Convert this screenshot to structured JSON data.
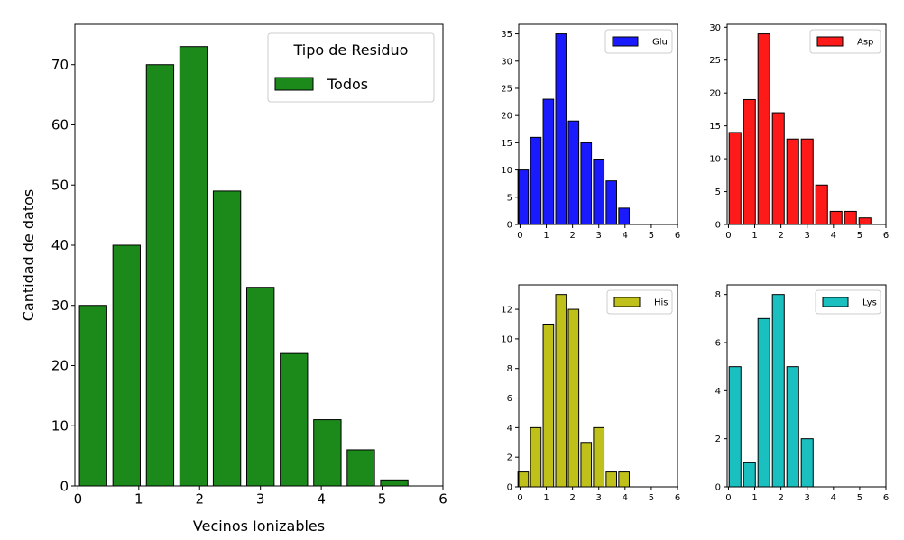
{
  "chart_data": [
    {
      "id": "main",
      "type": "bar",
      "x": [
        0.25,
        0.8,
        1.35,
        1.9,
        2.45,
        3.0,
        3.55,
        4.1,
        4.65,
        5.2
      ],
      "values": [
        30,
        40,
        70,
        73,
        49,
        33,
        22,
        11,
        6,
        1
      ],
      "xlim": [
        -0.05,
        6
      ],
      "ylim": [
        0,
        76.7
      ],
      "xticks": [
        0,
        1,
        2,
        3,
        4,
        5,
        6
      ],
      "yticks": [
        0,
        10,
        20,
        30,
        40,
        50,
        60,
        70
      ],
      "xlabel": "Vecinos Ionizables",
      "ylabel": "Cantidad de datos",
      "color": "#1b8a1b",
      "legend": {
        "title": "Tipo de Residuo",
        "label": "Todos",
        "placement": "top-right"
      },
      "grid": false
    },
    {
      "id": "glu",
      "type": "bar",
      "x": [
        0.12,
        0.6,
        1.08,
        1.56,
        2.04,
        2.52,
        3.0,
        3.48,
        3.96,
        4.44
      ],
      "values": [
        10,
        16,
        23,
        35,
        19,
        15,
        12,
        8,
        3,
        0
      ],
      "xlim": [
        -0.05,
        6
      ],
      "ylim": [
        0,
        36.75
      ],
      "xticks": [
        0,
        1,
        2,
        3,
        4,
        5,
        6
      ],
      "yticks": [
        0,
        5,
        10,
        15,
        20,
        25,
        30,
        35
      ],
      "color": "#1a1aff",
      "legend": {
        "label": "Glu",
        "placement": "top-right"
      },
      "grid": false
    },
    {
      "id": "asp",
      "type": "bar",
      "x": [
        0.25,
        0.8,
        1.35,
        1.9,
        2.45,
        3.0,
        3.55,
        4.1,
        4.65,
        5.2
      ],
      "values": [
        14,
        19,
        29,
        17,
        13,
        13,
        6,
        2,
        2,
        1
      ],
      "xlim": [
        -0.05,
        6
      ],
      "ylim": [
        0,
        30.45
      ],
      "xticks": [
        0,
        1,
        2,
        3,
        4,
        5,
        6
      ],
      "yticks": [
        0,
        5,
        10,
        15,
        20,
        25,
        30
      ],
      "color": "#ff1a1a",
      "legend": {
        "label": "Asp",
        "placement": "top-right"
      },
      "grid": false
    },
    {
      "id": "his",
      "type": "bar",
      "x": [
        0.12,
        0.6,
        1.08,
        1.56,
        2.04,
        2.52,
        3.0,
        3.48,
        3.96,
        4.44
      ],
      "values": [
        1,
        4,
        11,
        13,
        12,
        3,
        4,
        1,
        1,
        0
      ],
      "xlim": [
        -0.05,
        6
      ],
      "ylim": [
        0,
        13.65
      ],
      "xticks": [
        0,
        1,
        2,
        3,
        4,
        5,
        6
      ],
      "yticks": [
        0,
        2,
        4,
        6,
        8,
        10,
        12
      ],
      "color": "#c0c01a",
      "legend": {
        "label": "His",
        "placement": "top-right"
      },
      "grid": false
    },
    {
      "id": "lys",
      "type": "bar",
      "x": [
        0.25,
        0.8,
        1.35,
        1.9,
        2.45,
        3.0,
        3.55,
        4.1,
        4.65,
        5.2
      ],
      "values": [
        5,
        1,
        7,
        8,
        5,
        2,
        0,
        0,
        0,
        0
      ],
      "xlim": [
        -0.05,
        6
      ],
      "ylim": [
        0,
        8.4
      ],
      "xticks": [
        0,
        1,
        2,
        3,
        4,
        5,
        6
      ],
      "yticks": [
        0,
        2,
        4,
        6,
        8
      ],
      "color": "#1ac0c0",
      "legend": {
        "label": "Lys",
        "placement": "top-right"
      },
      "grid": false
    }
  ]
}
